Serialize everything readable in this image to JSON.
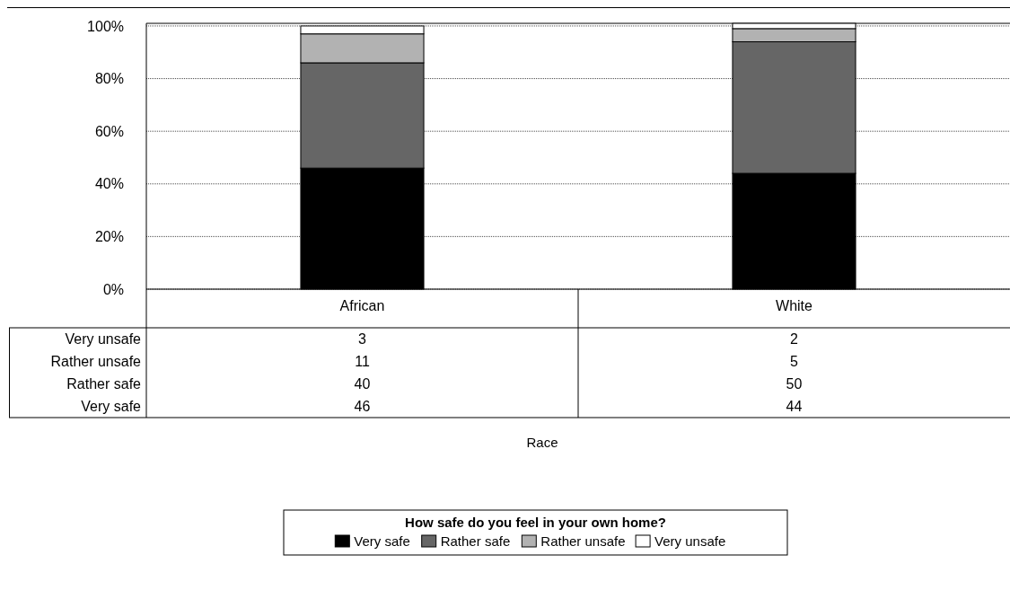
{
  "chart_data": {
    "type": "bar",
    "stacked": true,
    "annotations": [
      "Race"
    ],
    "legend_title": "How safe do you feel in your own home?",
    "categories": [
      "African",
      "White"
    ],
    "series": [
      {
        "name": "Very safe",
        "color": "#000000",
        "values": [
          46,
          44
        ]
      },
      {
        "name": "Rather safe",
        "color": "#666666",
        "values": [
          40,
          50
        ]
      },
      {
        "name": "Rather unsafe",
        "color": "#b2b2b2",
        "values": [
          11,
          5
        ]
      },
      {
        "name": "Very unsafe",
        "color": "#ffffff",
        "values": [
          3,
          2
        ]
      }
    ],
    "ylim": [
      0,
      101
    ],
    "yticks": [
      {
        "value": 0,
        "label": "0%"
      },
      {
        "value": 20,
        "label": "20%"
      },
      {
        "value": 40,
        "label": "40%"
      },
      {
        "value": 60,
        "label": "60%"
      },
      {
        "value": 80,
        "label": "80%"
      },
      {
        "value": 100,
        "label": "100%"
      }
    ],
    "grid": "y",
    "legend": "bottom",
    "data_labels": true
  }
}
